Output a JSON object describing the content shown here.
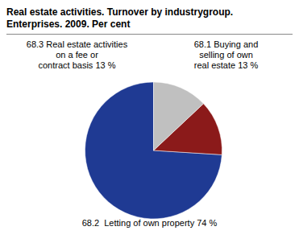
{
  "chart_data": {
    "type": "pie",
    "title": "Real estate activities. Turnover by industrygroup.",
    "subtitle": "Enterprises. 2009. Per cent",
    "categories": [
      "68.2  Letting of own property 74 %",
      "68.1 Buying and\nselling of own\nreal estate 13 %",
      "68.3 Real estate activities\non a fee or\ncontract basis 13 %"
    ],
    "values": [
      74,
      13,
      13
    ],
    "colors": [
      "#1F3A93",
      "#8B1A1A",
      "#C0C0C0"
    ]
  }
}
